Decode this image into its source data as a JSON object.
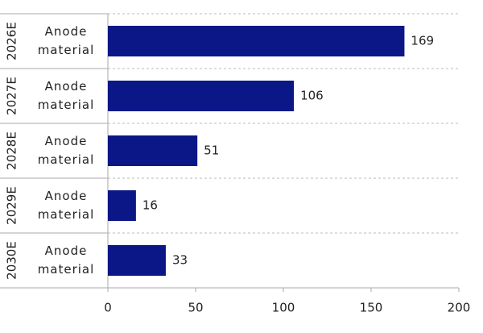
{
  "chart_data": {
    "type": "bar",
    "orientation": "horizontal",
    "groups": [
      "2026E",
      "2027E",
      "2028E",
      "2029E",
      "2030E"
    ],
    "categories": [
      "Anode material",
      "Anode material",
      "Anode material",
      "Anode material",
      "Anode material"
    ],
    "values": [
      169,
      106,
      51,
      16,
      33
    ],
    "color": "#0b1787",
    "xlim": [
      0,
      200
    ],
    "xticks": [
      0,
      50,
      100,
      150,
      200
    ]
  }
}
